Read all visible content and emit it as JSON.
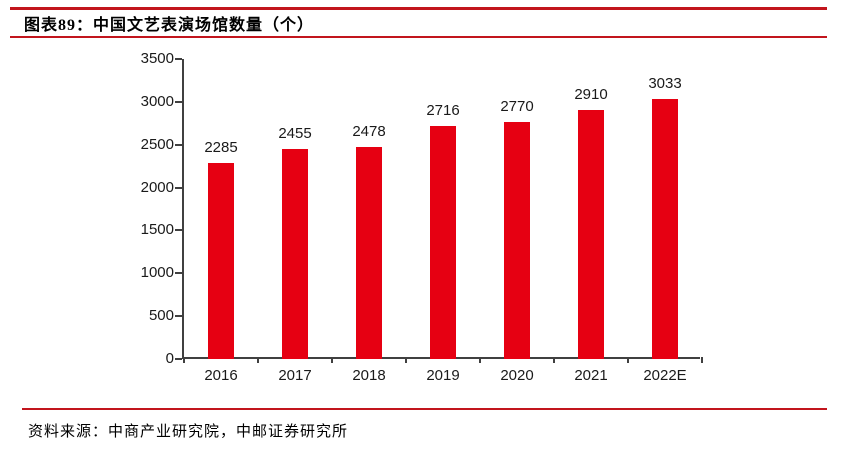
{
  "header": {
    "title": "图表89：中国文艺表演场馆数量（个）"
  },
  "chart_data": {
    "type": "bar",
    "title": "中国文艺表演场馆数量（个）",
    "categories": [
      "2016",
      "2017",
      "2018",
      "2019",
      "2020",
      "2021",
      "2022E"
    ],
    "values": [
      2285,
      2455,
      2478,
      2716,
      2770,
      2910,
      3033
    ],
    "xlabel": "",
    "ylabel": "",
    "ylim": [
      0,
      3500
    ],
    "ytick_interval": 500,
    "grid": false,
    "legend": "none",
    "value_labels": true
  },
  "footer": {
    "source": "资料来源：中商产业研究院，中邮证券研究所"
  },
  "colors": {
    "bar_red": "#e60012",
    "header_rule_red": "#c2151d",
    "axis_gray": "#404040",
    "text_black": "#1a1a1a"
  }
}
